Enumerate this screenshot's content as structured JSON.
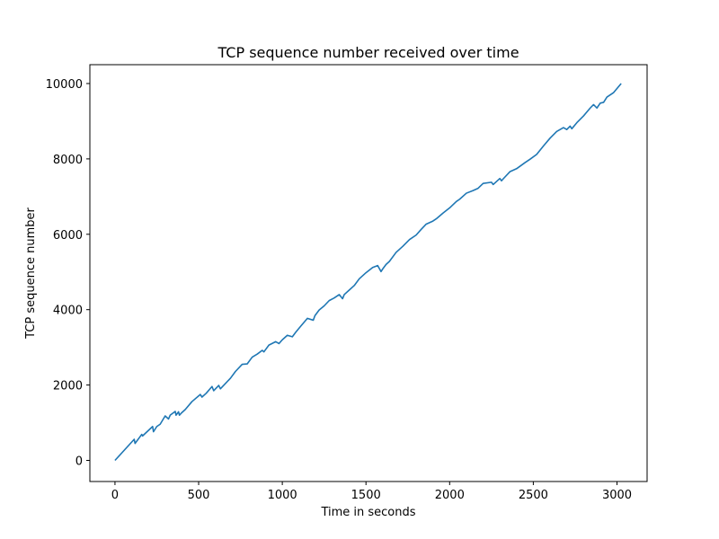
{
  "chart_data": {
    "type": "line",
    "title": "TCP sequence number received over time",
    "xlabel": "Time in seconds",
    "ylabel": "TCP sequence number",
    "xlim": [
      -150,
      3180
    ],
    "ylim": [
      -560,
      10500
    ],
    "xticks": [
      0,
      500,
      1000,
      1500,
      2000,
      2500,
      3000
    ],
    "yticks": [
      0,
      2000,
      4000,
      6000,
      8000,
      10000
    ],
    "grid": false,
    "series_color": "#1f77b4",
    "series": [
      {
        "x": [
          0,
          115,
          120,
          160,
          165,
          225,
          230,
          250,
          270,
          300,
          320,
          330,
          360,
          365,
          380,
          385,
          400,
          420,
          460,
          510,
          520,
          545,
          580,
          590,
          620,
          630,
          660,
          690,
          720,
          760,
          790,
          820,
          850,
          880,
          890,
          920,
          960,
          980,
          1000,
          1030,
          1060,
          1080,
          1110,
          1150,
          1185,
          1195,
          1220,
          1250,
          1280,
          1310,
          1340,
          1360,
          1370,
          1400,
          1430,
          1460,
          1500,
          1540,
          1570,
          1590,
          1600,
          1620,
          1640,
          1680,
          1720,
          1760,
          1800,
          1830,
          1860,
          1900,
          1920,
          1960,
          2000,
          2040,
          2060,
          2100,
          2140,
          2170,
          2200,
          2250,
          2260,
          2300,
          2310,
          2320,
          2360,
          2400,
          2450,
          2480,
          2520,
          2560,
          2600,
          2640,
          2680,
          2700,
          2720,
          2730,
          2760,
          2800,
          2840,
          2860,
          2880,
          2900,
          2920,
          2940,
          2980,
          3025
        ],
        "y": [
          0,
          560,
          450,
          690,
          650,
          900,
          760,
          900,
          960,
          1180,
          1100,
          1200,
          1300,
          1200,
          1290,
          1200,
          1270,
          1350,
          1560,
          1750,
          1680,
          1780,
          1960,
          1850,
          1990,
          1900,
          2040,
          2180,
          2360,
          2550,
          2560,
          2740,
          2820,
          2920,
          2880,
          3060,
          3150,
          3100,
          3200,
          3320,
          3280,
          3400,
          3560,
          3770,
          3720,
          3840,
          3990,
          4100,
          4240,
          4310,
          4400,
          4290,
          4400,
          4520,
          4640,
          4820,
          4980,
          5120,
          5170,
          5010,
          5080,
          5200,
          5280,
          5520,
          5680,
          5860,
          5980,
          6130,
          6270,
          6350,
          6410,
          6560,
          6700,
          6870,
          6930,
          7090,
          7160,
          7220,
          7350,
          7380,
          7320,
          7480,
          7420,
          7470,
          7660,
          7740,
          7900,
          7990,
          8120,
          8340,
          8550,
          8730,
          8830,
          8780,
          8870,
          8800,
          8960,
          9140,
          9350,
          9440,
          9350,
          9480,
          9500,
          9640,
          9760,
          10000
        ]
      }
    ]
  }
}
